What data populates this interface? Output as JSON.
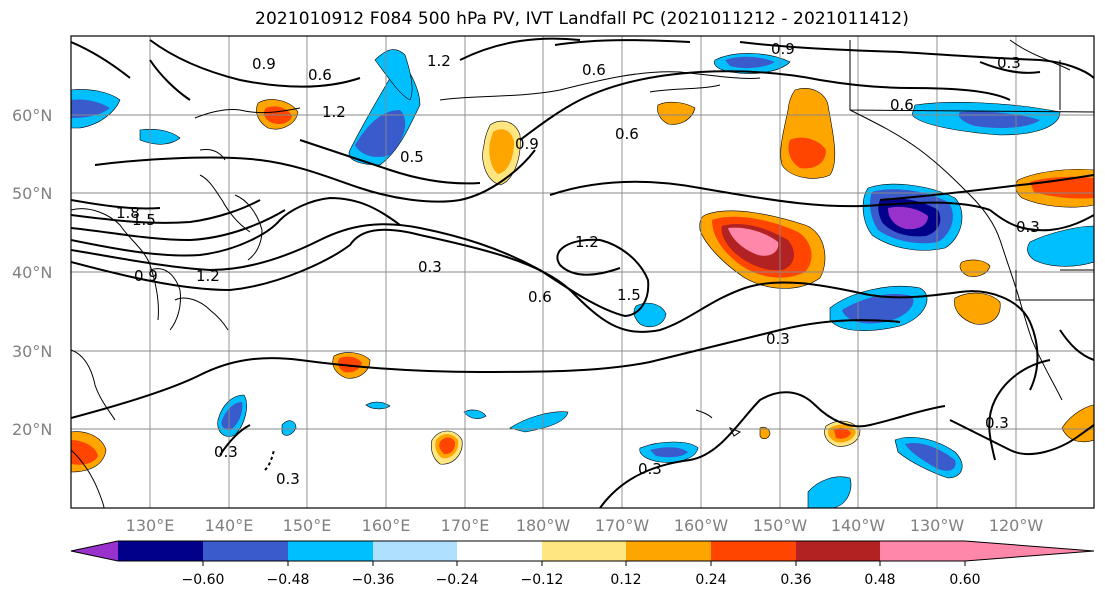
{
  "title": "2021010912 F084 500 hPa PV, IVT Landfall PC (2021011212 - 2021011412)",
  "lat_labels": [
    "60°N",
    "50°N",
    "40°N",
    "30°N",
    "20°N"
  ],
  "lon_labels": [
    "130°E",
    "140°E",
    "150°E",
    "160°E",
    "170°E",
    "180°W",
    "170°W",
    "160°W",
    "150°W",
    "140°W",
    "130°W",
    "120°W"
  ],
  "contour_labels": [
    "0.9",
    "0.6",
    "1.2",
    "1.2",
    "0.5",
    "0.9",
    "0.6",
    "1.8",
    "1.5",
    "0.9",
    "1.2",
    "0.3",
    "1.2",
    "1.5",
    "0.6",
    "0.6",
    "0.9",
    "0.6",
    "0.3",
    "0.3",
    "0.3",
    "0.3",
    "0.3",
    "0.3",
    "0.3"
  ],
  "colorbar": {
    "ticks": [
      "−0.60",
      "−0.48",
      "−0.36",
      "−0.24",
      "−0.12",
      "0.12",
      "0.24",
      "0.36",
      "0.48",
      "0.60"
    ],
    "colors": [
      "#9932cc",
      "#00008b",
      "#3a5bcc",
      "#00bfff",
      "#b0e0ff",
      "#ffffff",
      "#ffe680",
      "#ffa500",
      "#ff4500",
      "#b22222",
      "#ff88aa"
    ]
  }
}
